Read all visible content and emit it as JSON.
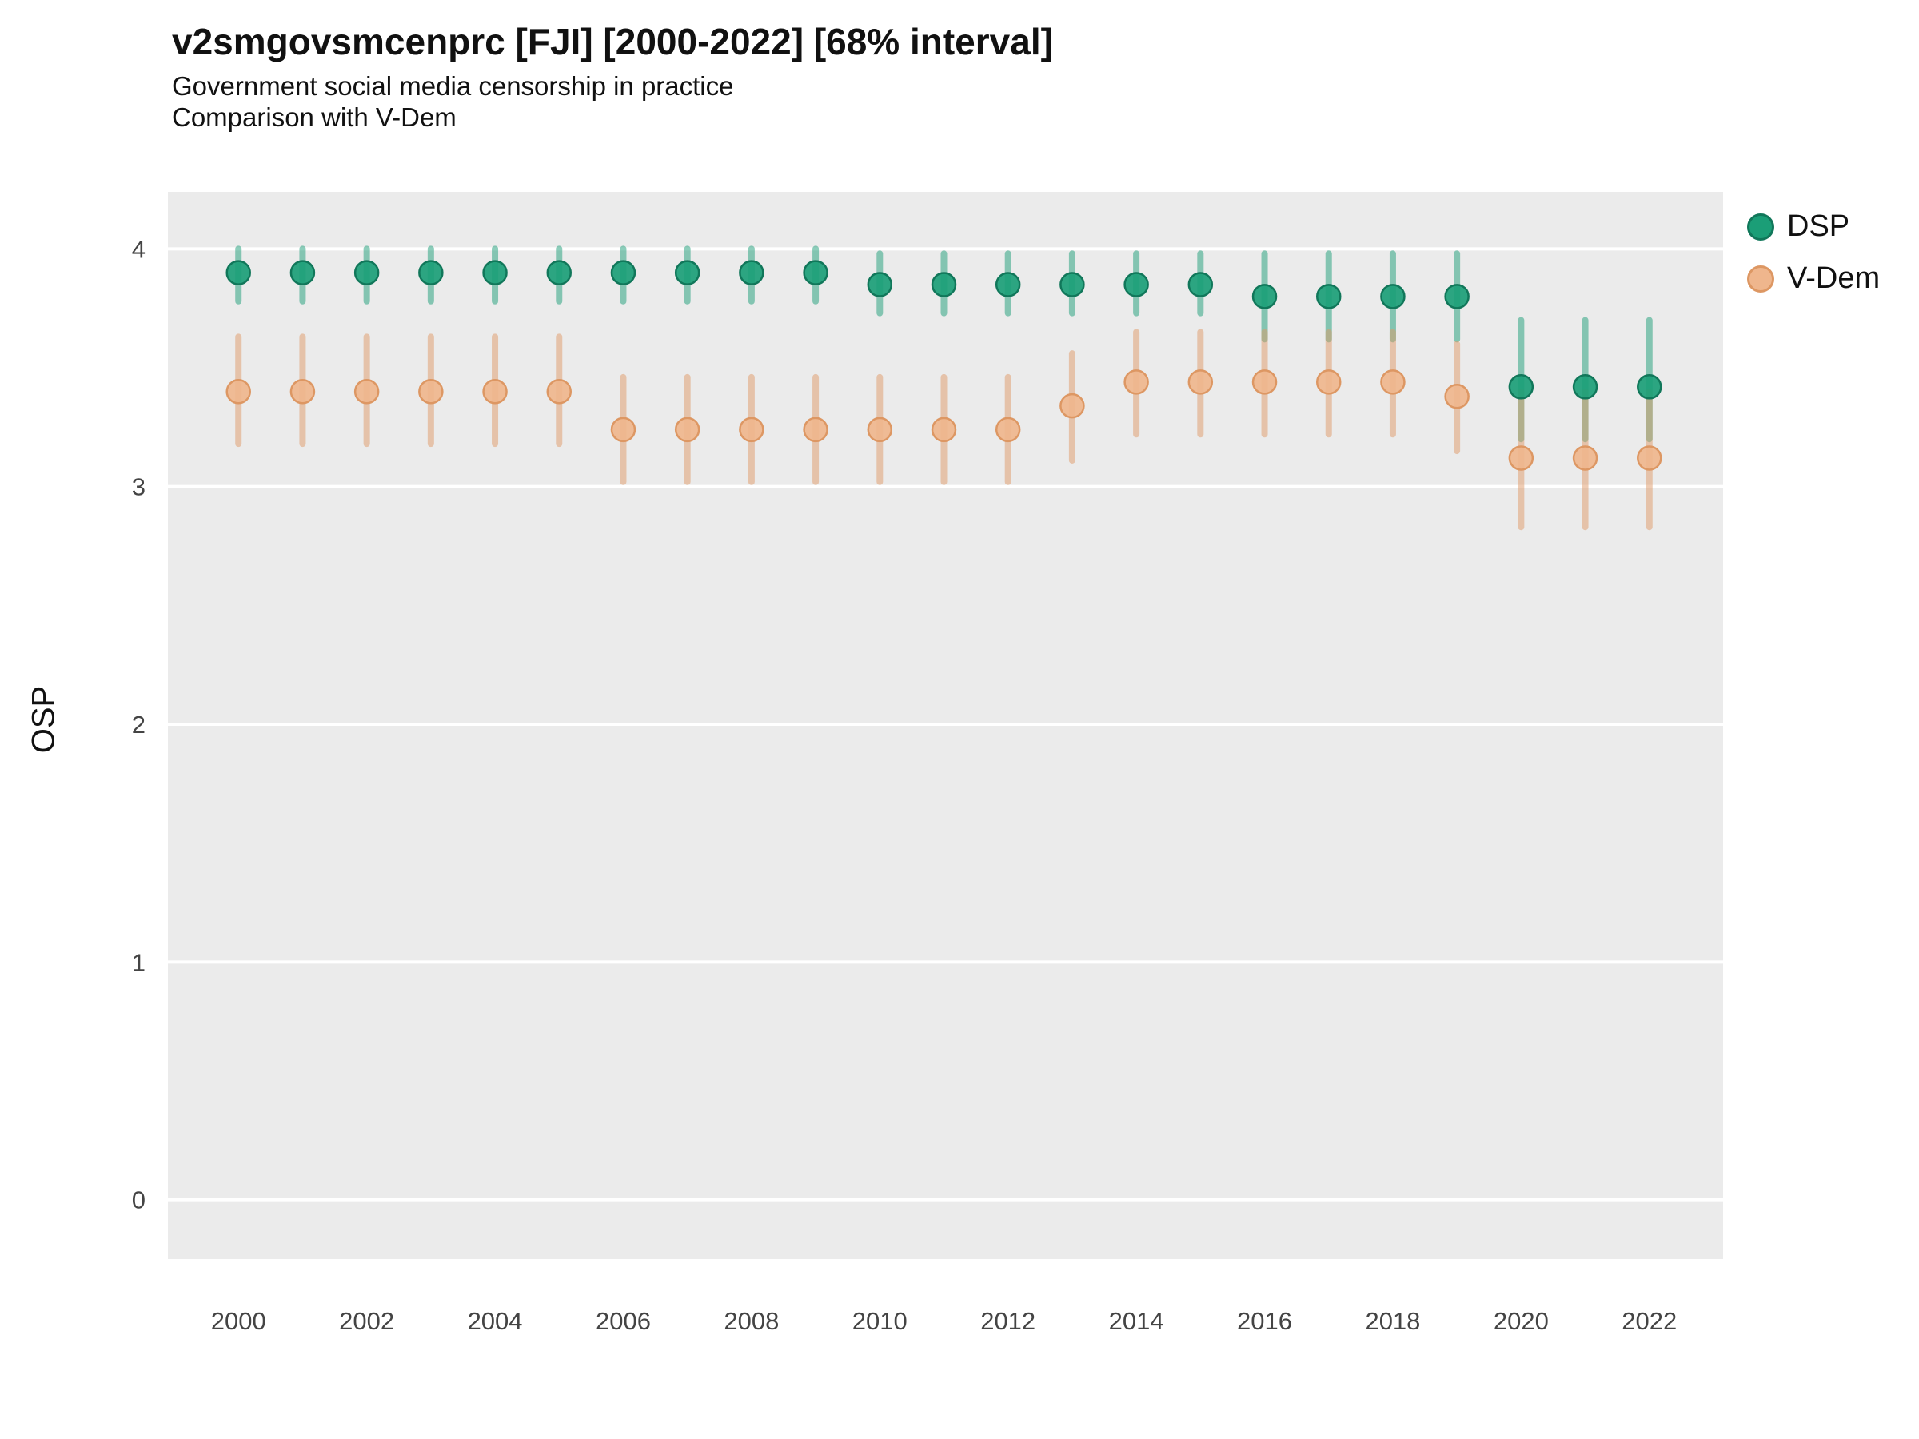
{
  "header": {
    "title": "v2smgovsmcenprc [FJI] [2000-2022] [68% interval]",
    "subtitle": "Government social media censorship in practice",
    "subtitle2": "Comparison with V-Dem"
  },
  "chart_data": {
    "type": "scatter",
    "title": "v2smgovsmcenprc [FJI] [2000-2022] [68% interval]",
    "subtitle": "Government social media censorship in practice",
    "comparison_note": "Comparison with V-Dem",
    "interval": "68%",
    "xlabel": "",
    "ylabel": "OSP",
    "grid": true,
    "legend_position": "right",
    "panel_background": "#EBEBEB",
    "gridline_color": "#FFFFFF",
    "x": [
      2000,
      2001,
      2002,
      2003,
      2004,
      2005,
      2006,
      2007,
      2008,
      2009,
      2010,
      2011,
      2012,
      2013,
      2014,
      2015,
      2016,
      2017,
      2018,
      2019,
      2020,
      2021,
      2022
    ],
    "xtick_labels": [
      2000,
      2002,
      2004,
      2006,
      2008,
      2010,
      2012,
      2014,
      2016,
      2018,
      2020,
      2022
    ],
    "yticks": [
      0,
      1,
      2,
      3,
      4
    ],
    "ylim": [
      -0.25,
      4.24
    ],
    "xlim": [
      1998.9,
      2023.15
    ],
    "series": [
      {
        "name": "DSP",
        "color": "#1b9e77",
        "fill": "#1b9e77",
        "stroke": "#11775a",
        "values": [
          3.9,
          3.9,
          3.9,
          3.9,
          3.9,
          3.9,
          3.9,
          3.9,
          3.9,
          3.9,
          3.85,
          3.85,
          3.85,
          3.85,
          3.85,
          3.85,
          3.8,
          3.8,
          3.8,
          3.8,
          3.42,
          3.42,
          3.42
        ],
        "lower": [
          3.78,
          3.78,
          3.78,
          3.78,
          3.78,
          3.78,
          3.78,
          3.78,
          3.78,
          3.78,
          3.73,
          3.73,
          3.73,
          3.73,
          3.73,
          3.73,
          3.62,
          3.62,
          3.62,
          3.62,
          3.2,
          3.2,
          3.2
        ],
        "upper": [
          4.0,
          4.0,
          4.0,
          4.0,
          4.0,
          4.0,
          4.0,
          4.0,
          4.0,
          4.0,
          3.98,
          3.98,
          3.98,
          3.98,
          3.98,
          3.98,
          3.98,
          3.98,
          3.98,
          3.98,
          3.7,
          3.7,
          3.7
        ]
      },
      {
        "name": "V-Dem",
        "color": "#e09a68",
        "fill": "#efb68d",
        "stroke": "#dd9763",
        "values": [
          3.4,
          3.4,
          3.4,
          3.4,
          3.4,
          3.4,
          3.24,
          3.24,
          3.24,
          3.24,
          3.24,
          3.24,
          3.24,
          3.34,
          3.44,
          3.44,
          3.44,
          3.44,
          3.44,
          3.38,
          3.12,
          3.12,
          3.12
        ],
        "lower": [
          3.18,
          3.18,
          3.18,
          3.18,
          3.18,
          3.18,
          3.02,
          3.02,
          3.02,
          3.02,
          3.02,
          3.02,
          3.02,
          3.11,
          3.22,
          3.22,
          3.22,
          3.22,
          3.22,
          3.15,
          2.83,
          2.83,
          2.83
        ],
        "upper": [
          3.63,
          3.63,
          3.63,
          3.63,
          3.63,
          3.63,
          3.46,
          3.46,
          3.46,
          3.46,
          3.46,
          3.46,
          3.46,
          3.56,
          3.65,
          3.65,
          3.65,
          3.65,
          3.65,
          3.6,
          3.4,
          3.4,
          3.4
        ]
      }
    ]
  }
}
